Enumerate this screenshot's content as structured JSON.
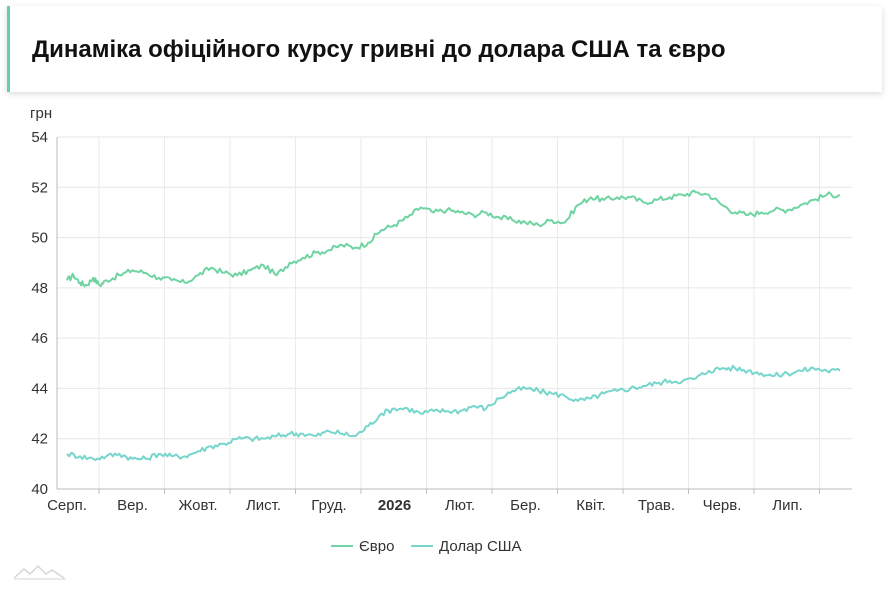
{
  "title": "Динаміка офіційного курсу гривні до долара США та євро",
  "chart_data": {
    "type": "line",
    "y_unit_label": "грн",
    "ylim": [
      40,
      54
    ],
    "yticks": [
      40,
      42,
      44,
      46,
      48,
      50,
      52,
      54
    ],
    "x_months": [
      "Серп.",
      "Вер.",
      "Жовт.",
      "Лист.",
      "Груд.",
      "2026",
      "Лют.",
      "Бер.",
      "Квіт.",
      "Трав.",
      "Черв.",
      "Лип."
    ],
    "x_bold_index": 5,
    "grid": true,
    "legend_position": "bottom-center",
    "series": [
      {
        "name": "Євро",
        "color": "#6fd4a2",
        "points": [
          [
            0,
            48.3
          ],
          [
            0.1,
            48.5
          ],
          [
            0.2,
            48.2
          ],
          [
            0.3,
            48.1
          ],
          [
            0.4,
            48.4
          ],
          [
            0.5,
            48.1
          ],
          [
            0.6,
            48.3
          ],
          [
            0.8,
            48.5
          ],
          [
            1.0,
            48.7
          ],
          [
            1.2,
            48.6
          ],
          [
            1.4,
            48.4
          ],
          [
            1.6,
            48.3
          ],
          [
            1.8,
            48.2
          ],
          [
            2.0,
            48.5
          ],
          [
            2.2,
            48.8
          ],
          [
            2.4,
            48.6
          ],
          [
            2.6,
            48.5
          ],
          [
            2.8,
            48.7
          ],
          [
            3.0,
            48.9
          ],
          [
            3.2,
            48.5
          ],
          [
            3.4,
            49.0
          ],
          [
            3.6,
            49.2
          ],
          [
            3.8,
            49.4
          ],
          [
            4.0,
            49.5
          ],
          [
            4.2,
            49.7
          ],
          [
            4.4,
            49.6
          ],
          [
            4.6,
            49.8
          ],
          [
            4.8,
            50.3
          ],
          [
            5.0,
            50.5
          ],
          [
            5.2,
            50.8
          ],
          [
            5.4,
            51.2
          ],
          [
            5.6,
            51.0
          ],
          [
            5.8,
            51.1
          ],
          [
            6.0,
            51.0
          ],
          [
            6.2,
            50.9
          ],
          [
            6.4,
            51.0
          ],
          [
            6.6,
            50.8
          ],
          [
            6.8,
            50.7
          ],
          [
            7.0,
            50.6
          ],
          [
            7.2,
            50.5
          ],
          [
            7.4,
            50.7
          ],
          [
            7.6,
            50.6
          ],
          [
            7.8,
            51.3
          ],
          [
            8.0,
            51.6
          ],
          [
            8.2,
            51.5
          ],
          [
            8.4,
            51.6
          ],
          [
            8.6,
            51.6
          ],
          [
            8.8,
            51.4
          ],
          [
            9.0,
            51.5
          ],
          [
            9.2,
            51.6
          ],
          [
            9.4,
            51.7
          ],
          [
            9.6,
            51.8
          ],
          [
            9.8,
            51.7
          ],
          [
            10.0,
            51.3
          ],
          [
            10.2,
            51.0
          ],
          [
            10.4,
            50.9
          ],
          [
            10.6,
            51.0
          ],
          [
            10.8,
            51.1
          ],
          [
            11.0,
            51.1
          ],
          [
            11.2,
            51.3
          ],
          [
            11.4,
            51.5
          ],
          [
            11.6,
            51.7
          ],
          [
            11.8,
            51.7
          ]
        ]
      },
      {
        "name": "Долар США",
        "color": "#76d6cc",
        "points": [
          [
            0,
            41.4
          ],
          [
            0.2,
            41.3
          ],
          [
            0.4,
            41.2
          ],
          [
            0.6,
            41.3
          ],
          [
            0.8,
            41.4
          ],
          [
            1.0,
            41.2
          ],
          [
            1.2,
            41.2
          ],
          [
            1.4,
            41.4
          ],
          [
            1.6,
            41.3
          ],
          [
            1.8,
            41.3
          ],
          [
            2.0,
            41.5
          ],
          [
            2.2,
            41.7
          ],
          [
            2.4,
            41.8
          ],
          [
            2.6,
            42.0
          ],
          [
            2.8,
            42.0
          ],
          [
            3.0,
            42.0
          ],
          [
            3.2,
            42.1
          ],
          [
            3.4,
            42.2
          ],
          [
            3.6,
            42.2
          ],
          [
            3.8,
            42.1
          ],
          [
            4.0,
            42.3
          ],
          [
            4.2,
            42.2
          ],
          [
            4.4,
            42.1
          ],
          [
            4.6,
            42.5
          ],
          [
            4.8,
            43.0
          ],
          [
            5.0,
            43.2
          ],
          [
            5.2,
            43.2
          ],
          [
            5.4,
            43.0
          ],
          [
            5.6,
            43.1
          ],
          [
            5.8,
            43.1
          ],
          [
            6.0,
            43.1
          ],
          [
            6.2,
            43.3
          ],
          [
            6.4,
            43.2
          ],
          [
            6.6,
            43.6
          ],
          [
            6.8,
            43.9
          ],
          [
            7.0,
            44.0
          ],
          [
            7.2,
            43.9
          ],
          [
            7.4,
            43.8
          ],
          [
            7.6,
            43.7
          ],
          [
            7.8,
            43.5
          ],
          [
            8.0,
            43.6
          ],
          [
            8.2,
            43.8
          ],
          [
            8.4,
            43.9
          ],
          [
            8.6,
            44.0
          ],
          [
            8.8,
            44.1
          ],
          [
            9.0,
            44.2
          ],
          [
            9.2,
            44.3
          ],
          [
            9.4,
            44.3
          ],
          [
            9.6,
            44.4
          ],
          [
            9.8,
            44.7
          ],
          [
            10.0,
            44.8
          ],
          [
            10.2,
            44.8
          ],
          [
            10.4,
            44.7
          ],
          [
            10.6,
            44.6
          ],
          [
            10.8,
            44.5
          ],
          [
            11.0,
            44.6
          ],
          [
            11.2,
            44.7
          ],
          [
            11.4,
            44.8
          ],
          [
            11.6,
            44.7
          ],
          [
            11.8,
            44.7
          ]
        ]
      }
    ]
  }
}
